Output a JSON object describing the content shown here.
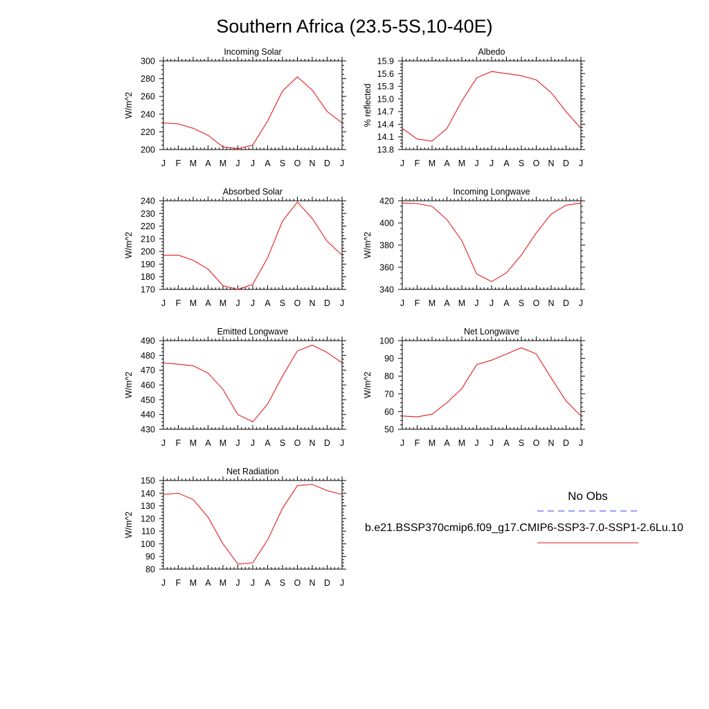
{
  "figure_title": "Southern Africa (23.5-5S,10-40E)",
  "colors": {
    "model_line": "#e41a1c",
    "obs_line": "#3a3af0",
    "axis": "#000000"
  },
  "legend": {
    "obs_label": "No Obs",
    "model_label": "b.e21.BSSP370cmip6.f09_g17.CMIP6-SSP3-7.0-SSP1-2.6Lu.10"
  },
  "months": [
    "J",
    "F",
    "M",
    "A",
    "M",
    "J",
    "J",
    "A",
    "S",
    "O",
    "N",
    "D",
    "J"
  ],
  "chart_data": [
    {
      "type": "line",
      "title": "Incoming Solar",
      "xlabel": "",
      "ylabel": "W/m^2",
      "ylim": [
        200,
        300
      ],
      "yticks": [
        200,
        220,
        240,
        260,
        280,
        300
      ],
      "categories": [
        "J",
        "F",
        "M",
        "A",
        "M",
        "J",
        "J",
        "A",
        "S",
        "O",
        "N",
        "D",
        "J"
      ],
      "series": [
        {
          "values": [
            230,
            229,
            224,
            216,
            203,
            201,
            205,
            232,
            266,
            282,
            267,
            243,
            230
          ]
        }
      ]
    },
    {
      "type": "line",
      "title": "Albedo",
      "xlabel": "",
      "ylabel": "% reflected",
      "ylim": [
        13.8,
        15.9
      ],
      "yticks": [
        13.8,
        14.1,
        14.4,
        14.7,
        15.0,
        15.3,
        15.6,
        15.9
      ],
      "categories": [
        "J",
        "F",
        "M",
        "A",
        "M",
        "J",
        "J",
        "A",
        "S",
        "O",
        "N",
        "D",
        "J"
      ],
      "series": [
        {
          "values": [
            14.3,
            14.05,
            14.0,
            14.3,
            14.95,
            15.5,
            15.65,
            15.6,
            15.55,
            15.45,
            15.15,
            14.7,
            14.3
          ]
        }
      ]
    },
    {
      "type": "line",
      "title": "Absorbed Solar",
      "xlabel": "",
      "ylabel": "W/m^2",
      "ylim": [
        170,
        240
      ],
      "yticks": [
        170,
        180,
        190,
        200,
        210,
        220,
        230,
        240
      ],
      "categories": [
        "J",
        "F",
        "M",
        "A",
        "M",
        "J",
        "J",
        "A",
        "S",
        "O",
        "N",
        "D",
        "J"
      ],
      "series": [
        {
          "values": [
            197,
            197,
            193,
            186,
            173,
            170,
            174,
            195,
            224,
            239,
            226,
            208,
            197
          ]
        }
      ]
    },
    {
      "type": "line",
      "title": "Incoming Longwave",
      "xlabel": "",
      "ylabel": "W/m^2",
      "ylim": [
        340,
        420
      ],
      "yticks": [
        340,
        360,
        380,
        400,
        420
      ],
      "categories": [
        "J",
        "F",
        "M",
        "A",
        "M",
        "J",
        "J",
        "A",
        "S",
        "O",
        "N",
        "D",
        "J"
      ],
      "series": [
        {
          "values": [
            418,
            417.5,
            415,
            403,
            384,
            354,
            347,
            355,
            371,
            391,
            408,
            416,
            418
          ]
        }
      ]
    },
    {
      "type": "line",
      "title": "Emitted Longwave",
      "xlabel": "",
      "ylabel": "W/m^2",
      "ylim": [
        430,
        490
      ],
      "yticks": [
        430,
        440,
        450,
        460,
        470,
        480,
        490
      ],
      "categories": [
        "J",
        "F",
        "M",
        "A",
        "M",
        "J",
        "J",
        "A",
        "S",
        "O",
        "N",
        "D",
        "J"
      ],
      "series": [
        {
          "values": [
            475,
            474,
            473,
            468,
            457,
            440,
            435,
            447,
            466,
            483,
            487,
            482,
            475
          ]
        }
      ]
    },
    {
      "type": "line",
      "title": "Net Longwave",
      "xlabel": "",
      "ylabel": "W/m^2",
      "ylim": [
        50,
        100
      ],
      "yticks": [
        50,
        60,
        70,
        80,
        90,
        100
      ],
      "categories": [
        "J",
        "F",
        "M",
        "A",
        "M",
        "J",
        "J",
        "A",
        "S",
        "O",
        "N",
        "D",
        "J"
      ],
      "series": [
        {
          "values": [
            57.5,
            57,
            58.5,
            65,
            73,
            86.5,
            89,
            92.5,
            96,
            92.5,
            79,
            66,
            57.5
          ]
        }
      ]
    },
    {
      "type": "line",
      "title": "Net Radiation",
      "xlabel": "",
      "ylabel": "W/m^2",
      "ylim": [
        80,
        150
      ],
      "yticks": [
        80,
        90,
        100,
        110,
        120,
        130,
        140,
        150
      ],
      "categories": [
        "J",
        "F",
        "M",
        "A",
        "M",
        "J",
        "J",
        "A",
        "S",
        "O",
        "N",
        "D",
        "J"
      ],
      "series": [
        {
          "values": [
            139,
            140,
            135,
            121,
            100,
            84,
            85,
            103,
            128,
            146,
            147,
            142,
            139
          ]
        }
      ]
    }
  ]
}
